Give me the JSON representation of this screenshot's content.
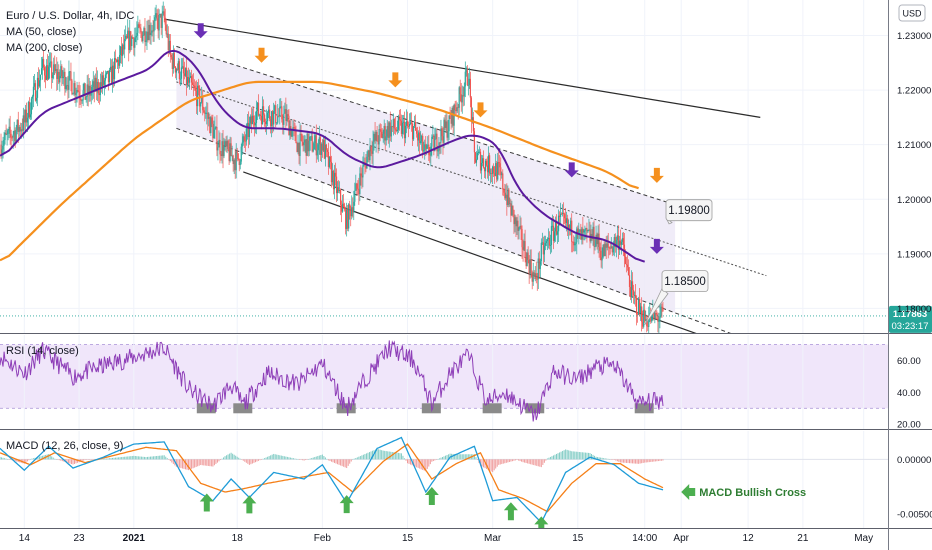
{
  "header": {
    "symbol_title": "Euro / U.S. Dollar, 4h, IDC",
    "ma50_label": "MA (50, close)",
    "ma200_label": "MA (200, close)",
    "currency_button": "USD"
  },
  "price_pane": {
    "y_ticks": [
      "1.23000",
      "1.22000",
      "1.21000",
      "1.20000",
      "1.19000"
    ],
    "y_tick_values": [
      1.23,
      1.22,
      1.21,
      1.2,
      1.19
    ],
    "partial_tick": "1.18000",
    "last_price": "1.17863",
    "countdown": "03:23:17",
    "callouts": [
      {
        "text": "1.19800",
        "value": 1.198
      },
      {
        "text": "1.18500",
        "value": 1.185
      }
    ]
  },
  "rsi_pane": {
    "label": "RSI (14, close)",
    "y_ticks": [
      "60.00",
      "40.00",
      "20.00"
    ],
    "y_tick_values": [
      60,
      40,
      20
    ],
    "upper_band": 70,
    "lower_band": 30
  },
  "macd_pane": {
    "label": "MACD (12, 26, close, 9)",
    "y_ticks": [
      "0.00000",
      "-0.00500"
    ],
    "y_tick_values": [
      0,
      -0.005
    ],
    "annotation": "MACD Bullish Cross"
  },
  "x_axis": {
    "labels": [
      "14",
      "23",
      "2021",
      "18",
      "Feb",
      "15",
      "Mar",
      "15",
      "14:00",
      "Apr",
      "12",
      "21",
      "May"
    ]
  },
  "colors": {
    "ma50": "#5b1a9e",
    "ma200": "#f5901e",
    "rsi": "#8e3fb8",
    "macd": "#1e9bd7",
    "signal": "#f57f17",
    "up_candle": "#26a69a",
    "down_candle": "#ef5350",
    "channel_fill": "#ede9f7",
    "rsi_band": "#f0e6fa",
    "arrow_orange": "#f5901e",
    "arrow_purple": "#6a2fb5",
    "arrow_green": "#4caf50",
    "last_price_bg": "#26a69a"
  },
  "chart_data": {
    "type": "candlestick",
    "title": "Euro / U.S. Dollar, 4h, IDC",
    "x_range": [
      "2020-12-10",
      "2021-05-05"
    ],
    "price": {
      "ylim": [
        1.1755,
        1.2365
      ],
      "anchors": [
        [
          "2020-12-10",
          1.21
        ],
        [
          "2020-12-14",
          1.214
        ],
        [
          "2020-12-17",
          1.224
        ],
        [
          "2020-12-21",
          1.222
        ],
        [
          "2020-12-24",
          1.219
        ],
        [
          "2020-12-28",
          1.222
        ],
        [
          "2020-12-31",
          1.229
        ],
        [
          "2021-01-06",
          1.233
        ],
        [
          "2021-01-07",
          1.226
        ],
        [
          "2021-01-12",
          1.218
        ],
        [
          "2021-01-15",
          1.21
        ],
        [
          "2021-01-18",
          1.207
        ],
        [
          "2021-01-21",
          1.216
        ],
        [
          "2021-01-26",
          1.215
        ],
        [
          "2021-01-28",
          1.21
        ],
        [
          "2021-02-01",
          1.21
        ],
        [
          "2021-02-03",
          1.203
        ],
        [
          "2021-02-05",
          1.196
        ],
        [
          "2021-02-09",
          1.21
        ],
        [
          "2021-02-12",
          1.213
        ],
        [
          "2021-02-16",
          1.213
        ],
        [
          "2021-02-18",
          1.208
        ],
        [
          "2021-02-22",
          1.214
        ],
        [
          "2021-02-25",
          1.223
        ],
        [
          "2021-02-26",
          1.208
        ],
        [
          "2021-03-02",
          1.205
        ],
        [
          "2021-03-04",
          1.198
        ],
        [
          "2021-03-08",
          1.185
        ],
        [
          "2021-03-09",
          1.19
        ],
        [
          "2021-03-12",
          1.196
        ],
        [
          "2021-03-15",
          1.193
        ],
        [
          "2021-03-18",
          1.193
        ],
        [
          "2021-03-19",
          1.19
        ],
        [
          "2021-03-22",
          1.193
        ],
        [
          "2021-03-24",
          1.182
        ],
        [
          "2021-03-26",
          1.178
        ],
        [
          "2021-03-29",
          1.1786
        ]
      ]
    },
    "ma50": [
      [
        "2020-12-10",
        1.207
      ],
      [
        "2020-12-17",
        1.216
      ],
      [
        "2020-12-28",
        1.221
      ],
      [
        "2021-01-04",
        1.224
      ],
      [
        "2021-01-07",
        1.228
      ],
      [
        "2021-01-11",
        1.225
      ],
      [
        "2021-01-15",
        1.217
      ],
      [
        "2021-01-19",
        1.213
      ],
      [
        "2021-01-25",
        1.213
      ],
      [
        "2021-02-01",
        1.212
      ],
      [
        "2021-02-05",
        1.208
      ],
      [
        "2021-02-10",
        1.2055
      ],
      [
        "2021-02-17",
        1.208
      ],
      [
        "2021-02-23",
        1.211
      ],
      [
        "2021-02-26",
        1.212
      ],
      [
        "2021-03-02",
        1.21
      ],
      [
        "2021-03-05",
        1.202
      ],
      [
        "2021-03-09",
        1.1975
      ],
      [
        "2021-03-15",
        1.1935
      ],
      [
        "2021-03-20",
        1.1925
      ],
      [
        "2021-03-26",
        1.188
      ]
    ],
    "ma200": [
      [
        "2020-12-10",
        1.188
      ],
      [
        "2020-12-20",
        1.199
      ],
      [
        "2021-01-01",
        1.211
      ],
      [
        "2021-01-10",
        1.218
      ],
      [
        "2021-01-20",
        1.2215
      ],
      [
        "2021-02-01",
        1.2215
      ],
      [
        "2021-02-10",
        1.2195
      ],
      [
        "2021-02-20",
        1.2165
      ],
      [
        "2021-03-01",
        1.213
      ],
      [
        "2021-03-10",
        1.209
      ],
      [
        "2021-03-20",
        1.205
      ],
      [
        "2021-03-25",
        1.2015
      ]
    ],
    "channel": {
      "upper": [
        [
          "2021-01-08",
          1.228
        ],
        [
          "2021-03-31",
          1.199
        ]
      ],
      "middle": [
        [
          "2021-01-08",
          1.2215
        ],
        [
          "2021-04-15",
          1.186
        ]
      ],
      "lower": [
        [
          "2021-01-08",
          1.213
        ],
        [
          "2021-04-15",
          1.173
        ]
      ],
      "outer_upper": [
        [
          "2021-01-06",
          1.233
        ],
        [
          "2021-04-14",
          1.215
        ]
      ],
      "outer_lower": [
        [
          "2021-01-19",
          1.205
        ],
        [
          "2021-04-08",
          1.1736
        ]
      ]
    },
    "arrows": [
      {
        "date": "2021-01-12",
        "value": 1.2295,
        "color": "purple"
      },
      {
        "date": "2021-01-22",
        "value": 1.225,
        "color": "orange"
      },
      {
        "date": "2021-02-13",
        "value": 1.2205,
        "color": "orange"
      },
      {
        "date": "2021-02-27",
        "value": 1.215,
        "color": "orange"
      },
      {
        "date": "2021-03-14",
        "value": 1.204,
        "color": "purple"
      },
      {
        "date": "2021-03-28",
        "value": 1.203,
        "color": "orange"
      },
      {
        "date": "2021-03-28",
        "value": 1.19,
        "color": "purple"
      }
    ],
    "rsi": {
      "ylim": [
        17,
        76
      ],
      "anchors": [
        [
          "2020-12-10",
          63
        ],
        [
          "2020-12-14",
          52
        ],
        [
          "2020-12-17",
          66
        ],
        [
          "2020-12-22",
          50
        ],
        [
          "2020-12-28",
          58
        ],
        [
          "2021-01-01",
          62
        ],
        [
          "2021-01-06",
          68
        ],
        [
          "2021-01-10",
          42
        ],
        [
          "2021-01-14",
          31
        ],
        [
          "2021-01-17",
          45
        ],
        [
          "2021-01-19",
          32
        ],
        [
          "2021-01-23",
          52
        ],
        [
          "2021-01-28",
          45
        ],
        [
          "2021-02-01",
          58
        ],
        [
          "2021-02-05",
          30
        ],
        [
          "2021-02-08",
          48
        ],
        [
          "2021-02-12",
          68
        ],
        [
          "2021-02-16",
          60
        ],
        [
          "2021-02-19",
          33
        ],
        [
          "2021-02-22",
          52
        ],
        [
          "2021-02-25",
          63
        ],
        [
          "2021-02-28",
          34
        ],
        [
          "2021-03-03",
          40
        ],
        [
          "2021-03-08",
          25
        ],
        [
          "2021-03-11",
          53
        ],
        [
          "2021-03-15",
          48
        ],
        [
          "2021-03-18",
          56
        ],
        [
          "2021-03-21",
          57
        ],
        [
          "2021-03-25",
          33
        ],
        [
          "2021-03-29",
          35
        ]
      ],
      "oversold_markers": [
        "2021-01-13",
        "2021-01-19",
        "2021-02-05",
        "2021-02-19",
        "2021-03-01",
        "2021-03-08",
        "2021-03-26"
      ]
    },
    "macd": {
      "ylim": [
        -0.0063,
        0.0026
      ],
      "macd_line": [
        [
          "2020-12-10",
          0.001
        ],
        [
          "2020-12-14",
          -0.001
        ],
        [
          "2020-12-18",
          0.0012
        ],
        [
          "2020-12-22",
          -0.0008
        ],
        [
          "2020-12-27",
          0.0002
        ],
        [
          "2021-01-01",
          0.0014
        ],
        [
          "2021-01-06",
          0.0016
        ],
        [
          "2021-01-10",
          -0.0025
        ],
        [
          "2021-01-14",
          -0.0038
        ],
        [
          "2021-01-17",
          -0.0018
        ],
        [
          "2021-01-20",
          -0.0035
        ],
        [
          "2021-01-24",
          -0.0012
        ],
        [
          "2021-01-29",
          -0.0018
        ],
        [
          "2021-02-01",
          -0.0005
        ],
        [
          "2021-02-05",
          -0.004
        ],
        [
          "2021-02-10",
          0.001
        ],
        [
          "2021-02-14",
          0.002
        ],
        [
          "2021-02-18",
          -0.003
        ],
        [
          "2021-02-22",
          0.0002
        ],
        [
          "2021-02-26",
          0.0012
        ],
        [
          "2021-03-01",
          -0.0038
        ],
        [
          "2021-03-05",
          -0.0035
        ],
        [
          "2021-03-09",
          -0.0058
        ],
        [
          "2021-03-13",
          -0.0012
        ],
        [
          "2021-03-17",
          0.0002
        ],
        [
          "2021-03-21",
          -0.0005
        ],
        [
          "2021-03-25",
          -0.0022
        ],
        [
          "2021-03-29",
          -0.0028
        ]
      ],
      "signal_line": [
        [
          "2020-12-10",
          0.0006
        ],
        [
          "2020-12-15",
          -0.0005
        ],
        [
          "2020-12-19",
          0.0006
        ],
        [
          "2020-12-24",
          -0.0003
        ],
        [
          "2020-12-29",
          0.0004
        ],
        [
          "2021-01-03",
          0.0011
        ],
        [
          "2021-01-08",
          0.0008
        ],
        [
          "2021-01-12",
          -0.0022
        ],
        [
          "2021-01-16",
          -0.003
        ],
        [
          "2021-01-19",
          -0.0027
        ],
        [
          "2021-01-23",
          -0.0022
        ],
        [
          "2021-01-28",
          -0.0017
        ],
        [
          "2021-02-02",
          -0.0012
        ],
        [
          "2021-02-06",
          -0.003
        ],
        [
          "2021-02-11",
          -0.0002
        ],
        [
          "2021-02-15",
          0.0014
        ],
        [
          "2021-02-19",
          -0.0018
        ],
        [
          "2021-02-23",
          -0.0004
        ],
        [
          "2021-02-27",
          0.0006
        ],
        [
          "2021-03-02",
          -0.0028
        ],
        [
          "2021-03-06",
          -0.0036
        ],
        [
          "2021-03-10",
          -0.0048
        ],
        [
          "2021-03-14",
          -0.0022
        ],
        [
          "2021-03-18",
          -0.0004
        ],
        [
          "2021-03-22",
          -0.0004
        ],
        [
          "2021-03-26",
          -0.0018
        ],
        [
          "2021-03-29",
          -0.0026
        ]
      ],
      "bullish_cross_markers": [
        "2021-01-13",
        "2021-01-20",
        "2021-02-05",
        "2021-02-19",
        "2021-03-04",
        "2021-03-09"
      ]
    }
  }
}
